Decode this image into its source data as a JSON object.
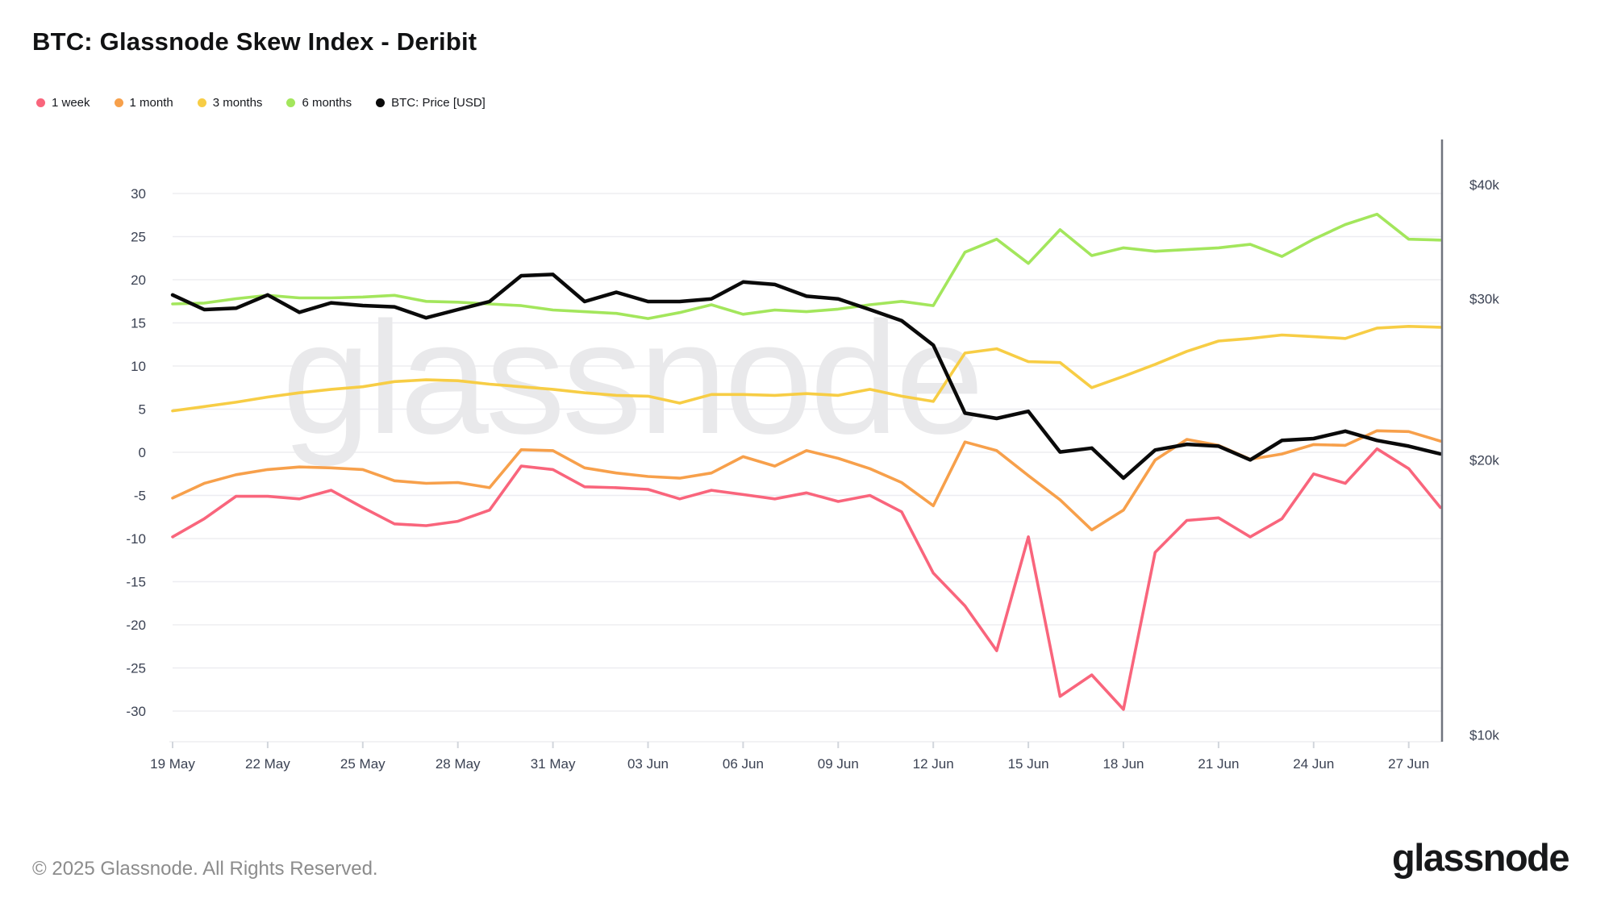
{
  "title": "BTC: Glassnode Skew Index - Deribit",
  "footer": {
    "copyright": "© 2025 Glassnode. All Rights Reserved.",
    "brand": "glassnode"
  },
  "watermark": "glassnode",
  "chart_data": {
    "type": "line",
    "x": [
      "19 May",
      "20 May",
      "21 May",
      "22 May",
      "23 May",
      "24 May",
      "25 May",
      "26 May",
      "27 May",
      "28 May",
      "29 May",
      "30 May",
      "31 May",
      "01 Jun",
      "02 Jun",
      "03 Jun",
      "04 Jun",
      "05 Jun",
      "06 Jun",
      "07 Jun",
      "08 Jun",
      "09 Jun",
      "10 Jun",
      "11 Jun",
      "12 Jun",
      "13 Jun",
      "14 Jun",
      "15 Jun",
      "16 Jun",
      "17 Jun",
      "18 Jun",
      "19 Jun",
      "20 Jun",
      "21 Jun",
      "22 Jun",
      "23 Jun",
      "24 Jun",
      "25 Jun",
      "26 Jun",
      "27 Jun",
      "28 Jun"
    ],
    "x_tick_labels": [
      "19 May",
      "22 May",
      "25 May",
      "28 May",
      "31 May",
      "03 Jun",
      "06 Jun",
      "09 Jun",
      "12 Jun",
      "15 Jun",
      "18 Jun",
      "21 Jun",
      "24 Jun",
      "27 Jun"
    ],
    "x_tick_indices": [
      0,
      3,
      6,
      9,
      12,
      15,
      18,
      21,
      24,
      27,
      30,
      33,
      36,
      39
    ],
    "left_axis": {
      "ylim": [
        -30,
        30
      ],
      "tick_step": 5,
      "ticks": [
        30,
        25,
        20,
        15,
        10,
        5,
        0,
        -5,
        -10,
        -15,
        -20,
        -25,
        -30
      ],
      "grid": true
    },
    "right_axis": {
      "scale": "log",
      "unit": "USD",
      "ticks": [
        {
          "label": "$40k",
          "value": 40
        },
        {
          "label": "$30k",
          "value": 30
        },
        {
          "label": "$20k",
          "value": 20
        },
        {
          "label": "$10k",
          "value": 10
        }
      ]
    },
    "series": [
      {
        "name": "1 week",
        "color": "#f9657c",
        "axis": "left",
        "values": [
          -9.8,
          -7.7,
          -5.1,
          -5.1,
          -5.4,
          -4.4,
          -6.4,
          -8.3,
          -8.5,
          -8.0,
          -6.7,
          -1.6,
          -2.0,
          -4.0,
          -4.1,
          -4.3,
          -5.4,
          -4.4,
          -4.9,
          -5.4,
          -4.7,
          -5.7,
          -5.0,
          -6.9,
          -14.0,
          -17.8,
          -23.0,
          -9.8,
          -28.3,
          -25.8,
          -29.8,
          -11.6,
          -7.9,
          -7.6,
          -9.8,
          -7.7,
          -2.5,
          -3.6,
          0.4,
          -1.9,
          -6.4
        ]
      },
      {
        "name": "1 month",
        "color": "#f7a04b",
        "axis": "left",
        "values": [
          -5.3,
          -3.6,
          -2.6,
          -2.0,
          -1.7,
          -1.8,
          -2.0,
          -3.3,
          -3.6,
          -3.5,
          -4.1,
          0.3,
          0.2,
          -1.8,
          -2.4,
          -2.8,
          -3.0,
          -2.4,
          -0.5,
          -1.6,
          0.2,
          -0.7,
          -1.9,
          -3.5,
          -6.2,
          1.2,
          0.2,
          -2.7,
          -5.5,
          -9.0,
          -6.7,
          -0.9,
          1.5,
          0.8,
          -0.8,
          -0.2,
          0.9,
          0.8,
          2.5,
          2.4,
          1.3
        ]
      },
      {
        "name": "3 months",
        "color": "#f7cd45",
        "axis": "left",
        "values": [
          4.8,
          5.3,
          5.8,
          6.4,
          6.9,
          7.3,
          7.6,
          8.2,
          8.4,
          8.3,
          7.9,
          7.6,
          7.3,
          6.9,
          6.6,
          6.5,
          5.7,
          6.7,
          6.7,
          6.6,
          6.8,
          6.6,
          7.3,
          6.5,
          5.9,
          11.5,
          12.0,
          10.5,
          10.4,
          7.5,
          8.8,
          10.2,
          11.7,
          12.9,
          13.2,
          13.6,
          13.4,
          13.2,
          14.4,
          14.6,
          14.5
        ]
      },
      {
        "name": "6 months",
        "color": "#a3e65c",
        "axis": "left",
        "values": [
          17.2,
          17.3,
          17.8,
          18.2,
          17.9,
          17.9,
          18.0,
          18.2,
          17.5,
          17.4,
          17.2,
          17.0,
          16.5,
          16.3,
          16.1,
          15.5,
          16.2,
          17.1,
          16.0,
          16.5,
          16.3,
          16.6,
          17.1,
          17.5,
          17.0,
          23.2,
          24.7,
          21.9,
          25.8,
          22.8,
          23.7,
          23.3,
          23.5,
          23.7,
          24.1,
          22.7,
          24.7,
          26.4,
          27.6,
          24.7,
          24.6
        ]
      },
      {
        "name": "BTC: Price [USD]",
        "color": "#0a0a0a",
        "axis": "right",
        "values_usd_thousands": [
          30.3,
          29.2,
          29.3,
          30.3,
          29.0,
          29.7,
          29.5,
          29.4,
          28.6,
          29.2,
          29.8,
          31.8,
          31.9,
          29.8,
          30.5,
          29.8,
          29.8,
          30.0,
          31.3,
          31.1,
          30.2,
          30.0,
          29.2,
          28.4,
          26.7,
          22.5,
          22.2,
          22.6,
          20.4,
          20.6,
          19.1,
          20.5,
          20.8,
          20.7,
          20.0,
          21.0,
          21.1,
          21.5,
          21.0,
          20.7,
          20.3
        ]
      }
    ],
    "legend_position": "top-left",
    "colors": {
      "grid": "#ededf1",
      "axis_text": "#3b4253",
      "tick": "#d2d6dc",
      "right_spine": "#70747e",
      "watermark": "#e9e9eb"
    }
  }
}
